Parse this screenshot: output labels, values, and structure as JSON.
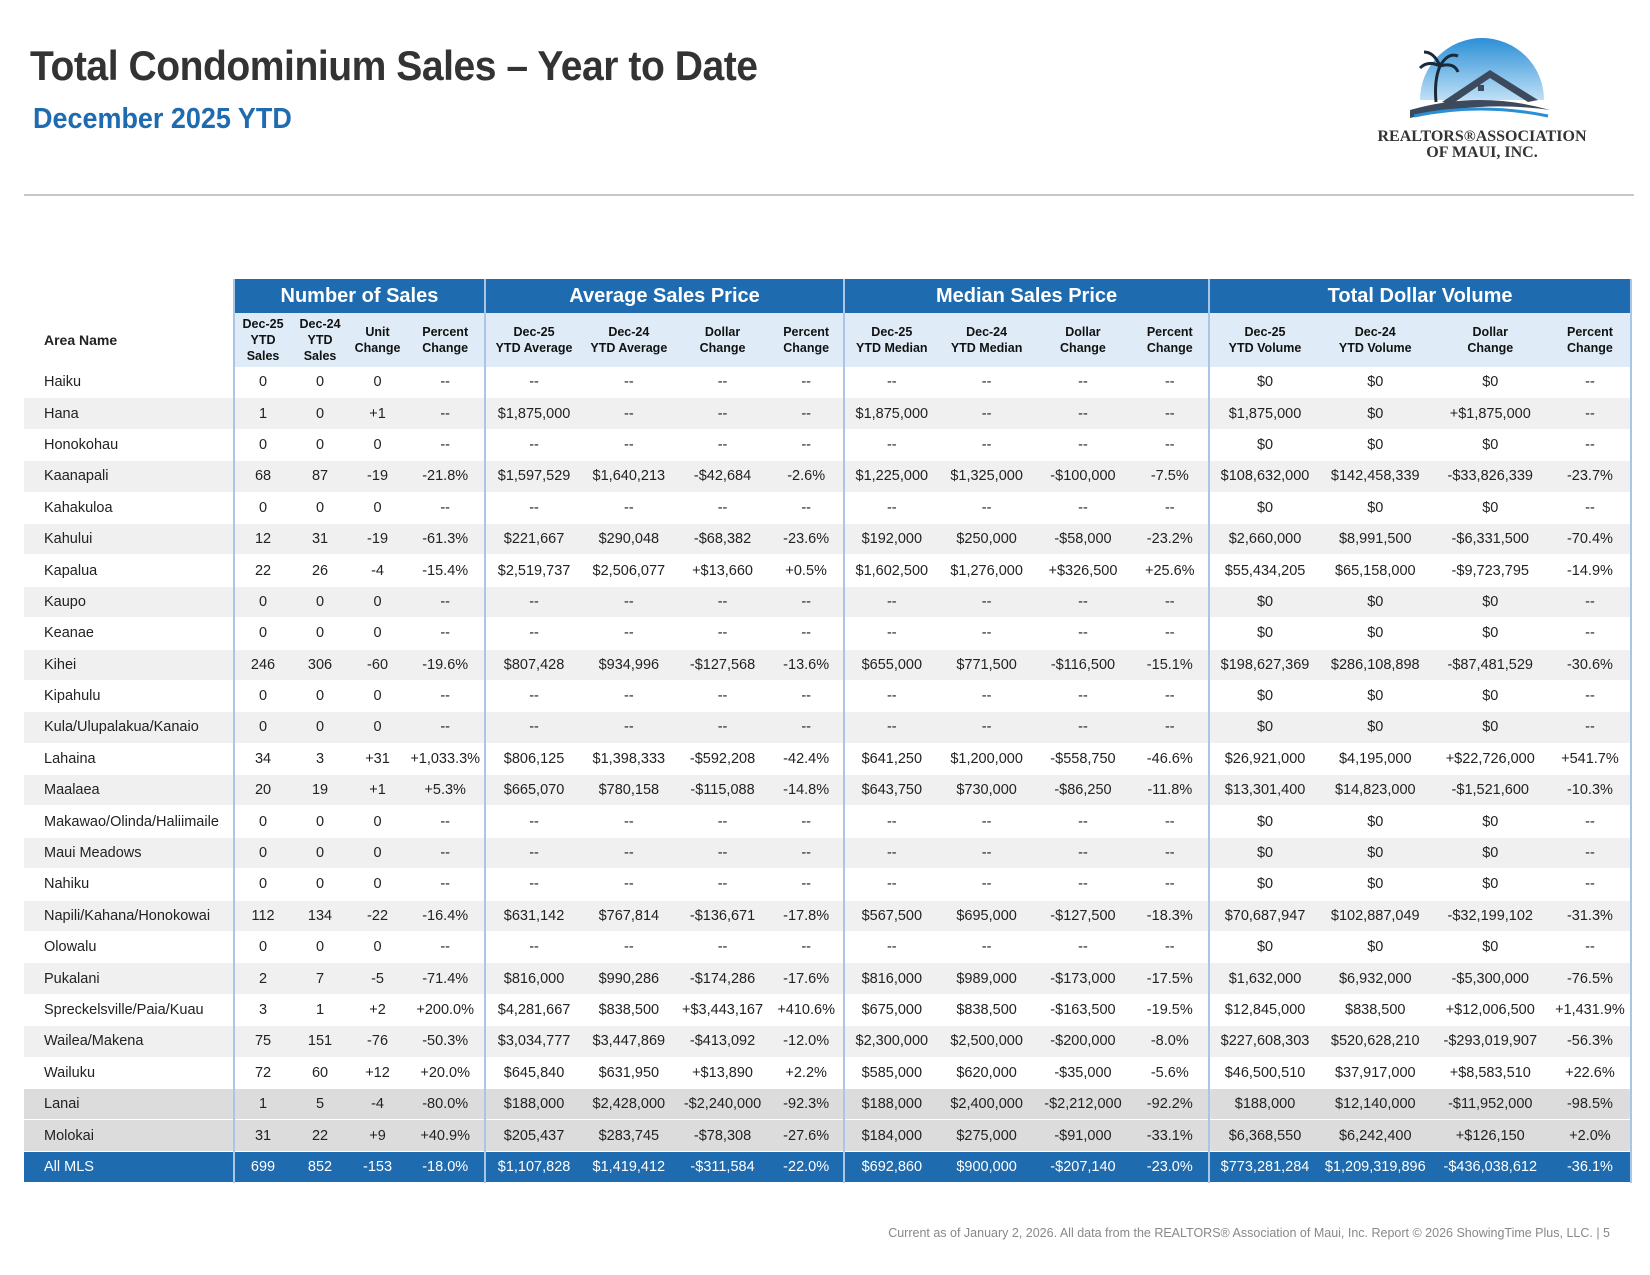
{
  "header": {
    "title": "Total Condominium Sales – Year to Date",
    "subtitle": "December 2025 YTD"
  },
  "logo": {
    "line1": "REALTORS®ASSOCIATION",
    "line2": "OF MAUI, INC.",
    "colors": {
      "sky": "#2b8fd6",
      "roof": "#3b4a5c"
    }
  },
  "table": {
    "area_header": "Area Name",
    "groups": [
      "Number of Sales",
      "Average Sales Price",
      "Median Sales Price",
      "Total Dollar Volume"
    ],
    "subheaders": [
      [
        "Dec-25",
        "YTD",
        "Sales"
      ],
      [
        "Dec-24",
        "YTD",
        "Sales"
      ],
      [
        "Unit",
        "Change"
      ],
      [
        "Percent",
        "Change"
      ],
      [
        "Dec-25",
        "YTD Average"
      ],
      [
        "Dec-24",
        "YTD Average"
      ],
      [
        "Dollar",
        "Change"
      ],
      [
        "Percent",
        "Change"
      ],
      [
        "Dec-25",
        "YTD Median"
      ],
      [
        "Dec-24",
        "YTD Median"
      ],
      [
        "Dollar",
        "Change"
      ],
      [
        "Percent",
        "Change"
      ],
      [
        "Dec-25",
        "YTD Volume"
      ],
      [
        "Dec-24",
        "YTD Volume"
      ],
      [
        "Dollar",
        "Change"
      ],
      [
        "Percent",
        "Change"
      ]
    ],
    "rows": [
      [
        "Haiku",
        "0",
        "0",
        "0",
        "--",
        "--",
        "--",
        "--",
        "--",
        "--",
        "--",
        "--",
        "--",
        "$0",
        "$0",
        "$0",
        "--"
      ],
      [
        "Hana",
        "1",
        "0",
        "+1",
        "--",
        "$1,875,000",
        "--",
        "--",
        "--",
        "$1,875,000",
        "--",
        "--",
        "--",
        "$1,875,000",
        "$0",
        "+$1,875,000",
        "--"
      ],
      [
        "Honokohau",
        "0",
        "0",
        "0",
        "--",
        "--",
        "--",
        "--",
        "--",
        "--",
        "--",
        "--",
        "--",
        "$0",
        "$0",
        "$0",
        "--"
      ],
      [
        "Kaanapali",
        "68",
        "87",
        "-19",
        "-21.8%",
        "$1,597,529",
        "$1,640,213",
        "-$42,684",
        "-2.6%",
        "$1,225,000",
        "$1,325,000",
        "-$100,000",
        "-7.5%",
        "$108,632,000",
        "$142,458,339",
        "-$33,826,339",
        "-23.7%"
      ],
      [
        "Kahakuloa",
        "0",
        "0",
        "0",
        "--",
        "--",
        "--",
        "--",
        "--",
        "--",
        "--",
        "--",
        "--",
        "$0",
        "$0",
        "$0",
        "--"
      ],
      [
        "Kahului",
        "12",
        "31",
        "-19",
        "-61.3%",
        "$221,667",
        "$290,048",
        "-$68,382",
        "-23.6%",
        "$192,000",
        "$250,000",
        "-$58,000",
        "-23.2%",
        "$2,660,000",
        "$8,991,500",
        "-$6,331,500",
        "-70.4%"
      ],
      [
        "Kapalua",
        "22",
        "26",
        "-4",
        "-15.4%",
        "$2,519,737",
        "$2,506,077",
        "+$13,660",
        "+0.5%",
        "$1,602,500",
        "$1,276,000",
        "+$326,500",
        "+25.6%",
        "$55,434,205",
        "$65,158,000",
        "-$9,723,795",
        "-14.9%"
      ],
      [
        "Kaupo",
        "0",
        "0",
        "0",
        "--",
        "--",
        "--",
        "--",
        "--",
        "--",
        "--",
        "--",
        "--",
        "$0",
        "$0",
        "$0",
        "--"
      ],
      [
        "Keanae",
        "0",
        "0",
        "0",
        "--",
        "--",
        "--",
        "--",
        "--",
        "--",
        "--",
        "--",
        "--",
        "$0",
        "$0",
        "$0",
        "--"
      ],
      [
        "Kihei",
        "246",
        "306",
        "-60",
        "-19.6%",
        "$807,428",
        "$934,996",
        "-$127,568",
        "-13.6%",
        "$655,000",
        "$771,500",
        "-$116,500",
        "-15.1%",
        "$198,627,369",
        "$286,108,898",
        "-$87,481,529",
        "-30.6%"
      ],
      [
        "Kipahulu",
        "0",
        "0",
        "0",
        "--",
        "--",
        "--",
        "--",
        "--",
        "--",
        "--",
        "--",
        "--",
        "$0",
        "$0",
        "$0",
        "--"
      ],
      [
        "Kula/Ulupalakua/Kanaio",
        "0",
        "0",
        "0",
        "--",
        "--",
        "--",
        "--",
        "--",
        "--",
        "--",
        "--",
        "--",
        "$0",
        "$0",
        "$0",
        "--"
      ],
      [
        "Lahaina",
        "34",
        "3",
        "+31",
        "+1,033.3%",
        "$806,125",
        "$1,398,333",
        "-$592,208",
        "-42.4%",
        "$641,250",
        "$1,200,000",
        "-$558,750",
        "-46.6%",
        "$26,921,000",
        "$4,195,000",
        "+$22,726,000",
        "+541.7%"
      ],
      [
        "Maalaea",
        "20",
        "19",
        "+1",
        "+5.3%",
        "$665,070",
        "$780,158",
        "-$115,088",
        "-14.8%",
        "$643,750",
        "$730,000",
        "-$86,250",
        "-11.8%",
        "$13,301,400",
        "$14,823,000",
        "-$1,521,600",
        "-10.3%"
      ],
      [
        "Makawao/Olinda/Haliimaile",
        "0",
        "0",
        "0",
        "--",
        "--",
        "--",
        "--",
        "--",
        "--",
        "--",
        "--",
        "--",
        "$0",
        "$0",
        "$0",
        "--"
      ],
      [
        "Maui Meadows",
        "0",
        "0",
        "0",
        "--",
        "--",
        "--",
        "--",
        "--",
        "--",
        "--",
        "--",
        "--",
        "$0",
        "$0",
        "$0",
        "--"
      ],
      [
        "Nahiku",
        "0",
        "0",
        "0",
        "--",
        "--",
        "--",
        "--",
        "--",
        "--",
        "--",
        "--",
        "--",
        "$0",
        "$0",
        "$0",
        "--"
      ],
      [
        "Napili/Kahana/Honokowai",
        "112",
        "134",
        "-22",
        "-16.4%",
        "$631,142",
        "$767,814",
        "-$136,671",
        "-17.8%",
        "$567,500",
        "$695,000",
        "-$127,500",
        "-18.3%",
        "$70,687,947",
        "$102,887,049",
        "-$32,199,102",
        "-31.3%"
      ],
      [
        "Olowalu",
        "0",
        "0",
        "0",
        "--",
        "--",
        "--",
        "--",
        "--",
        "--",
        "--",
        "--",
        "--",
        "$0",
        "$0",
        "$0",
        "--"
      ],
      [
        "Pukalani",
        "2",
        "7",
        "-5",
        "-71.4%",
        "$816,000",
        "$990,286",
        "-$174,286",
        "-17.6%",
        "$816,000",
        "$989,000",
        "-$173,000",
        "-17.5%",
        "$1,632,000",
        "$6,932,000",
        "-$5,300,000",
        "-76.5%"
      ],
      [
        "Spreckelsville/Paia/Kuau",
        "3",
        "1",
        "+2",
        "+200.0%",
        "$4,281,667",
        "$838,500",
        "+$3,443,167",
        "+410.6%",
        "$675,000",
        "$838,500",
        "-$163,500",
        "-19.5%",
        "$12,845,000",
        "$838,500",
        "+$12,006,500",
        "+1,431.9%"
      ],
      [
        "Wailea/Makena",
        "75",
        "151",
        "-76",
        "-50.3%",
        "$3,034,777",
        "$3,447,869",
        "-$413,092",
        "-12.0%",
        "$2,300,000",
        "$2,500,000",
        "-$200,000",
        "-8.0%",
        "$227,608,303",
        "$520,628,210",
        "-$293,019,907",
        "-56.3%"
      ],
      [
        "Wailuku",
        "72",
        "60",
        "+12",
        "+20.0%",
        "$645,840",
        "$631,950",
        "+$13,890",
        "+2.2%",
        "$585,000",
        "$620,000",
        "-$35,000",
        "-5.6%",
        "$46,500,510",
        "$37,917,000",
        "+$8,583,510",
        "+22.6%"
      ]
    ],
    "island_rows": [
      [
        "Lanai",
        "1",
        "5",
        "-4",
        "-80.0%",
        "$188,000",
        "$2,428,000",
        "-$2,240,000",
        "-92.3%",
        "$188,000",
        "$2,400,000",
        "-$2,212,000",
        "-92.2%",
        "$188,000",
        "$12,140,000",
        "-$11,952,000",
        "-98.5%"
      ],
      [
        "Molokai",
        "31",
        "22",
        "+9",
        "+40.9%",
        "$205,437",
        "$283,745",
        "-$78,308",
        "-27.6%",
        "$184,000",
        "$275,000",
        "-$91,000",
        "-33.1%",
        "$6,368,550",
        "$6,242,400",
        "+$126,150",
        "+2.0%"
      ]
    ],
    "total_row": [
      "All MLS",
      "699",
      "852",
      "-153",
      "-18.0%",
      "$1,107,828",
      "$1,419,412",
      "-$311,584",
      "-22.0%",
      "$692,860",
      "$900,000",
      "-$207,140",
      "-23.0%",
      "$773,281,284",
      "$1,209,319,896",
      "-$436,038,612",
      "-36.1%"
    ]
  },
  "footer": {
    "text": "Current as of January 2, 2026. All data from the REALTORS® Association of Maui, Inc. Report © 2026 ShowingTime Plus, LLC.  |  5"
  }
}
